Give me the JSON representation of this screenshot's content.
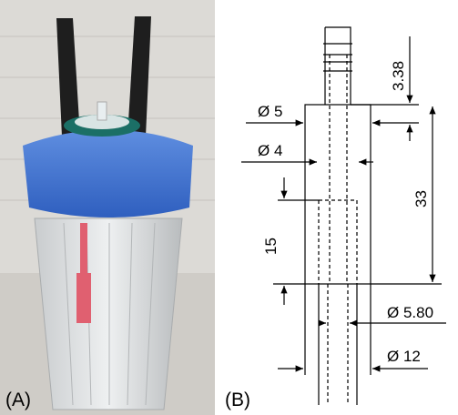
{
  "panels": [
    {
      "label": "(A)"
    },
    {
      "label": "(B)"
    }
  ],
  "dimensions": {
    "top_height": "3.38",
    "outer_diameter": "Ø 5",
    "inner_diameter": "Ø 4",
    "body_height": "33",
    "insert_depth": "15",
    "tube_diameter": "Ø 5.80",
    "tube_outer": "Ø 12"
  }
}
